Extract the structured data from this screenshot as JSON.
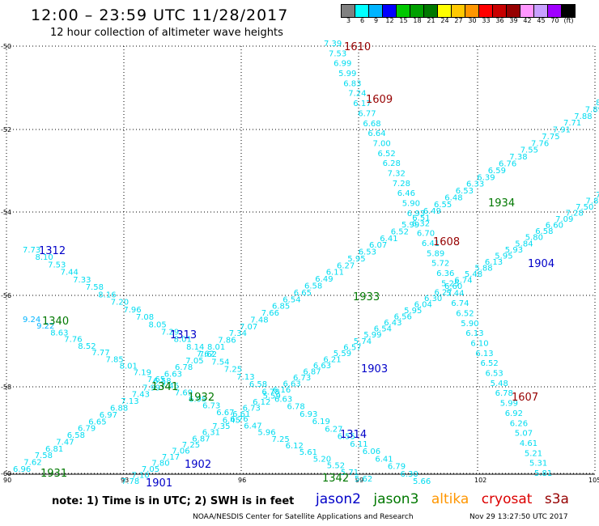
{
  "header": {
    "title": "12:00 – 23:59 UTC 11/28/2017",
    "subtitle": "12 hour collection of altimeter wave heights"
  },
  "colorbar": {
    "colors": [
      "#808080",
      "#00ffff",
      "#00b4ff",
      "#0000ff",
      "#00c800",
      "#00a000",
      "#007800",
      "#ffff00",
      "#ffc800",
      "#ff9600",
      "#ff0000",
      "#c80000",
      "#960000",
      "#ff96ff",
      "#c8a0ff",
      "#a000ff",
      "#000000"
    ],
    "labels": [
      "3",
      "6",
      "9",
      "12",
      "15",
      "18",
      "21",
      "24",
      "27",
      "30",
      "33",
      "36",
      "39",
      "42",
      "45",
      "70",
      "(ft)"
    ]
  },
  "axes": {
    "lat_labels": [
      "-50",
      "-52",
      "-54",
      "-56",
      "-58",
      "-60"
    ],
    "lon_labels": [
      "90",
      "93",
      "96",
      "99",
      "102",
      "105"
    ]
  },
  "satellite_colors": {
    "jason2": "#0000c8",
    "jason3": "#007800",
    "altika": "#ff9600",
    "cryosat": "#dc0000",
    "s3a": "#960000"
  },
  "tracks": [
    {
      "values": [
        "6.96",
        "7.62",
        "7.58",
        "6.81",
        "7.47",
        "6.58",
        "6.79",
        "6.65",
        "6.97",
        "6.88",
        "7.13",
        "7.43",
        "7.99",
        "6.58",
        "6.63",
        "6.78",
        "7.05",
        "7.62",
        "8.01",
        "7.86",
        "7.34",
        "7.07",
        "7.48",
        "7.66",
        "6.85",
        "6.54",
        "6.65",
        "6.58",
        "6.49",
        "6.11",
        "6.27",
        "5.95",
        "6.53",
        "6.07",
        "6.41",
        "6.52",
        "5.99",
        "6.51",
        "6.49",
        "6.55",
        "6.48",
        "6.53",
        "6.33",
        "6.39",
        "6.59",
        "6.76",
        "7.38",
        "7.55",
        "7.76",
        "7.75",
        "7.91",
        "7.71",
        "7.88",
        "7.89",
        "8.20"
      ]
    },
    {
      "values": [
        "7.78",
        "7.10",
        "7.05",
        "7.80",
        "7.17",
        "7.06",
        "7.25",
        "6.87",
        "6.31",
        "7.35",
        "6.45",
        "6.61",
        "6.73",
        "6.12",
        "5.59",
        "6.16",
        "6.63",
        "6.73",
        "6.87",
        "6.63",
        "6.21",
        "5.59",
        "6.57",
        "5.74",
        "5.99",
        "6.54",
        "6.43",
        "6.56",
        "5.95",
        "6.04",
        "6.30",
        "6.27",
        "6.60",
        "6.74",
        "5.48",
        "5.88",
        "6.13",
        "5.95",
        "5.93",
        "5.84",
        "5.80",
        "6.58",
        "6.60",
        "7.09",
        "7.28",
        "7.50",
        "7.88",
        "7.86"
      ]
    },
    {
      "values": [
        "7.73",
        "8.10",
        "7.53",
        "7.44",
        "7.33",
        "7.58",
        "8.16",
        "7.20",
        "7.96",
        "7.08",
        "8.05",
        "7.29",
        "8.01",
        "8.14",
        "7.62",
        "7.54",
        "7.25",
        "7.13",
        "6.58",
        "6.78",
        "6.63",
        "6.78",
        "6.93",
        "6.19",
        "6.27",
        "6.55",
        "6.11",
        "6.06",
        "6.41",
        "6.79",
        "6.30",
        "5.66"
      ]
    },
    {
      "values": [
        "9.24",
        "9.22",
        "8.63",
        "7.76",
        "8.52",
        "7.77",
        "7.85",
        "8.01",
        "7.19",
        "7.65",
        "7.46",
        "7.69",
        "6.95",
        "6.73",
        "6.67",
        "6.76",
        "6.47",
        "5.96",
        "7.25",
        "6.12",
        "5.61",
        "5.20",
        "5.52",
        "5.71",
        "5.62"
      ]
    },
    {
      "values": [
        "7.39",
        "7.53",
        "6.99",
        "5.99",
        "6.83",
        "7.24",
        "6.17",
        "6.77",
        "6.68",
        "6.64",
        "7.00",
        "6.52",
        "6.28",
        "7.32",
        "7.28",
        "6.46",
        "5.90",
        "6.93",
        "6.32",
        "6.70",
        "6.41",
        "5.89",
        "5.72",
        "6.36",
        "5.25",
        "5.44",
        "6.74",
        "6.52",
        "5.90",
        "6.13",
        "6.10",
        "6.13",
        "6.52",
        "6.53",
        "5.48",
        "6.78",
        "5.99",
        "6.92",
        "6.26",
        "5.07",
        "4.61",
        "5.21",
        "5.31",
        "5.81"
      ]
    }
  ],
  "pass_labels": [
    {
      "text": "1610",
      "sat": "s3a"
    },
    {
      "text": "1609",
      "sat": "s3a"
    },
    {
      "text": "1608",
      "sat": "s3a"
    },
    {
      "text": "1607",
      "sat": "s3a"
    },
    {
      "text": "1934",
      "sat": "jason3"
    },
    {
      "text": "1933",
      "sat": "jason3"
    },
    {
      "text": "1932",
      "sat": "jason3"
    },
    {
      "text": "1931",
      "sat": "jason3"
    },
    {
      "text": "1342",
      "sat": "jason3"
    },
    {
      "text": "1341",
      "sat": "jason3"
    },
    {
      "text": "1340",
      "sat": "jason3"
    },
    {
      "text": "1904",
      "sat": "jason2"
    },
    {
      "text": "1903",
      "sat": "jason2"
    },
    {
      "text": "1902",
      "sat": "jason2"
    },
    {
      "text": "1901",
      "sat": "jason2"
    },
    {
      "text": "1314",
      "sat": "jason2"
    },
    {
      "text": "1313",
      "sat": "jason2"
    },
    {
      "text": "1312",
      "sat": "jason2"
    }
  ],
  "footer": {
    "note": "note:  1) Time is in UTC;  2) SWH is in feet",
    "legend": [
      {
        "label": "jason2",
        "sat": "jason2"
      },
      {
        "label": "jason3",
        "sat": "jason3"
      },
      {
        "label": "altika",
        "sat": "altika"
      },
      {
        "label": "cryosat",
        "sat": "cryosat"
      },
      {
        "label": "s3a",
        "sat": "s3a"
      }
    ],
    "credit": "NOAA/NESDIS Center for Satellite Applications and Research",
    "timestamp": "Nov 29 13:27:50 UTC 2017"
  }
}
